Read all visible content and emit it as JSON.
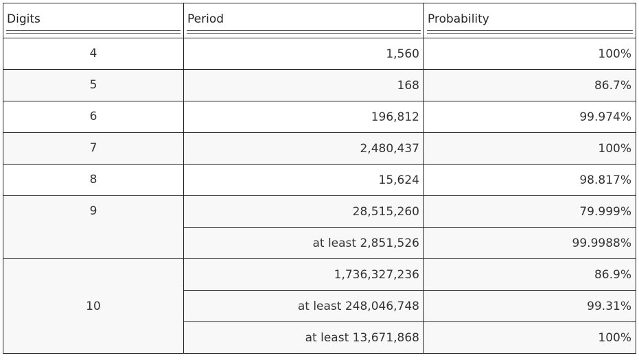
{
  "table": {
    "headers": [
      "Digits",
      "Period",
      "Probability"
    ],
    "groups": [
      {
        "digits": "4",
        "rows": [
          {
            "period": "1,560",
            "probability": "100%"
          }
        ]
      },
      {
        "digits": "5",
        "rows": [
          {
            "period": "168",
            "probability": "86.7%"
          }
        ]
      },
      {
        "digits": "6",
        "rows": [
          {
            "period": "196,812",
            "probability": "99.974%"
          }
        ]
      },
      {
        "digits": "7",
        "rows": [
          {
            "period": "2,480,437",
            "probability": "100%"
          }
        ]
      },
      {
        "digits": "8",
        "rows": [
          {
            "period": "15,624",
            "probability": "98.817%"
          }
        ]
      },
      {
        "digits": "9",
        "rows": [
          {
            "period": "28,515,260",
            "probability": "79.999%"
          },
          {
            "period": "at least 2,851,526",
            "probability": "99.9988%"
          }
        ]
      },
      {
        "digits": "10",
        "rows": [
          {
            "period": "1,736,327,236",
            "probability": "86.9%"
          },
          {
            "period": "at least 248,046,748",
            "probability": "99.31%"
          },
          {
            "period": "at least 13,671,868",
            "probability": "100%"
          }
        ]
      }
    ]
  }
}
